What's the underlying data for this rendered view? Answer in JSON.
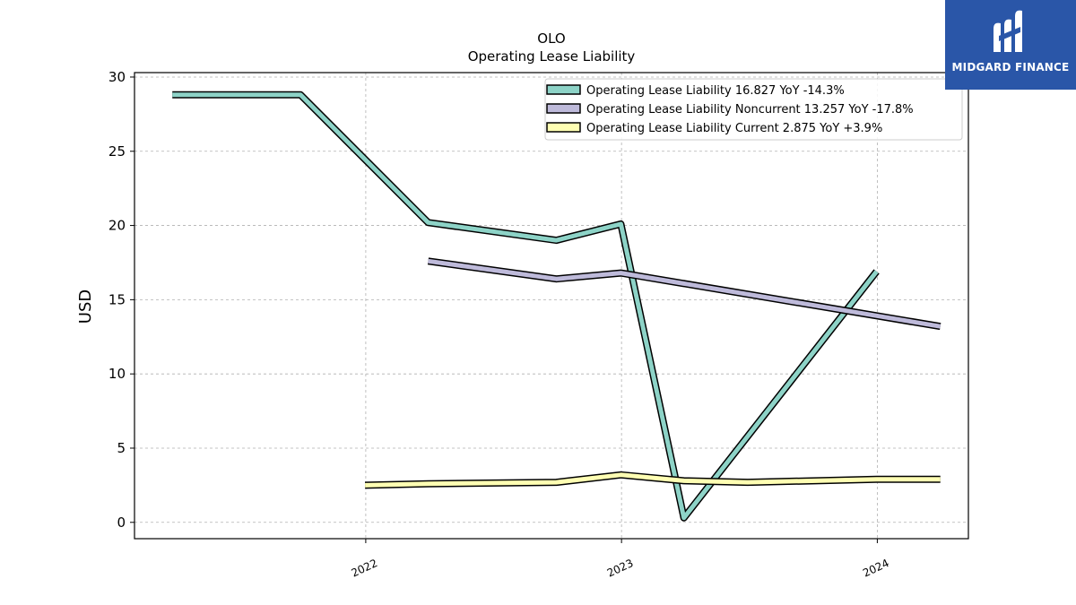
{
  "chart_data": {
    "type": "line",
    "title": "OLO",
    "subtitle": "Operating Lease Liability",
    "ylabel": "USD",
    "xlabel": "",
    "ylim": [
      -1.1,
      30.3
    ],
    "xlim": [
      "2021-02-05",
      "2024-05-10"
    ],
    "yticks": [
      0,
      5,
      10,
      15,
      20,
      25,
      30
    ],
    "xticks": [
      {
        "label": "2022",
        "date": "2022-01-01"
      },
      {
        "label": "2023",
        "date": "2023-01-01"
      },
      {
        "label": "2024",
        "date": "2024-01-01"
      }
    ],
    "grid": true,
    "legend_position": "top-right",
    "series": [
      {
        "name": "Operating Lease Liability",
        "legend_label": "Operating Lease Liability  16.827 YoY -14.3%",
        "color": "#8dd3c7",
        "points": [
          {
            "x": "2021-03-31",
            "y": 28.8
          },
          {
            "x": "2021-09-30",
            "y": 28.8
          },
          {
            "x": "2022-03-31",
            "y": 20.2
          },
          {
            "x": "2022-09-30",
            "y": 19.0
          },
          {
            "x": "2022-12-31",
            "y": 20.1
          },
          {
            "x": "2023-03-31",
            "y": 0.3
          },
          {
            "x": "2023-12-31",
            "y": 16.9
          }
        ]
      },
      {
        "name": "Operating Lease Liability Noncurrent",
        "legend_label": "Operating Lease Liability Noncurrent  13.257 YoY -17.8%",
        "color": "#bebada",
        "points": [
          {
            "x": "2022-03-31",
            "y": 17.6
          },
          {
            "x": "2022-09-30",
            "y": 16.4
          },
          {
            "x": "2022-12-31",
            "y": 16.8
          },
          {
            "x": "2024-03-31",
            "y": 13.2
          }
        ]
      },
      {
        "name": "Operating Lease Liability Current",
        "legend_label": "Operating Lease Liability Current  2.875 YoY +3.9%",
        "color": "#ffffb3",
        "points": [
          {
            "x": "2021-12-31",
            "y": 2.5
          },
          {
            "x": "2022-03-31",
            "y": 2.6
          },
          {
            "x": "2022-09-30",
            "y": 2.7
          },
          {
            "x": "2022-12-31",
            "y": 3.2
          },
          {
            "x": "2023-03-31",
            "y": 2.8
          },
          {
            "x": "2023-06-30",
            "y": 2.7
          },
          {
            "x": "2023-12-31",
            "y": 2.9
          },
          {
            "x": "2024-03-31",
            "y": 2.9
          }
        ]
      }
    ]
  },
  "logo": {
    "text": "MIDGARD FINANCE",
    "icon": "midgard-logo-icon",
    "background": "#2a56a8"
  }
}
